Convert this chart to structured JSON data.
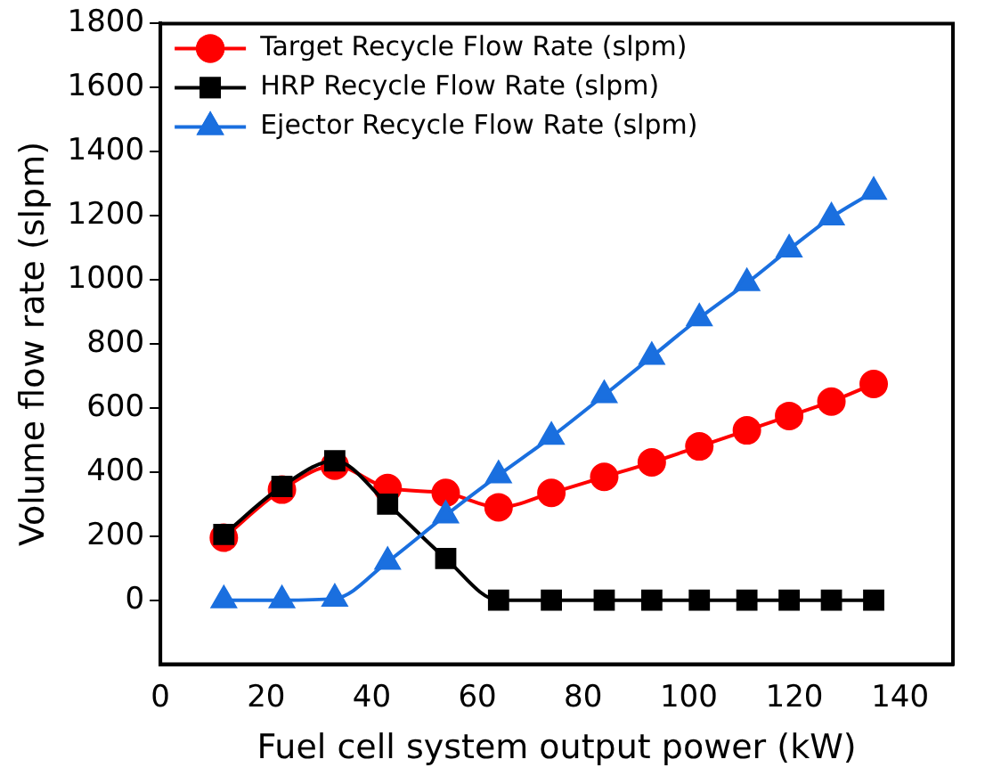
{
  "chart_data": {
    "type": "line",
    "xlabel": "Fuel cell system output power (kW)",
    "ylabel": "Volume flow rate (slpm)",
    "x": [
      12,
      23,
      33,
      43,
      54,
      64,
      74,
      84,
      93,
      102,
      111,
      119,
      127,
      135
    ],
    "series": [
      {
        "name": "Target Recycle Flow Rate (slpm)",
        "color": "#ff0000",
        "marker": "circle",
        "values": [
          195,
          345,
          420,
          350,
          335,
          290,
          335,
          385,
          430,
          480,
          530,
          575,
          620,
          675
        ]
      },
      {
        "name": "HRP Recycle Flow Rate (slpm)",
        "color": "#000000",
        "marker": "square",
        "values": [
          205,
          355,
          435,
          300,
          130,
          0,
          0,
          0,
          0,
          0,
          0,
          0,
          0,
          0
        ]
      },
      {
        "name": "Ejector Recycle Flow Rate (slpm)",
        "color": "#1a6fdf",
        "marker": "triangle",
        "values": [
          0,
          0,
          5,
          120,
          265,
          390,
          510,
          640,
          760,
          880,
          990,
          1095,
          1195,
          1275
        ]
      }
    ],
    "xlim": [
      0,
      150
    ],
    "xticks": [
      0,
      20,
      40,
      60,
      80,
      100,
      120,
      140
    ],
    "ylim": [
      -200,
      1800
    ],
    "yticks": [
      0,
      200,
      400,
      600,
      800,
      1000,
      1200,
      1400,
      1600,
      1800
    ],
    "grid": false,
    "legend": "top left",
    "line_style": "solid"
  }
}
